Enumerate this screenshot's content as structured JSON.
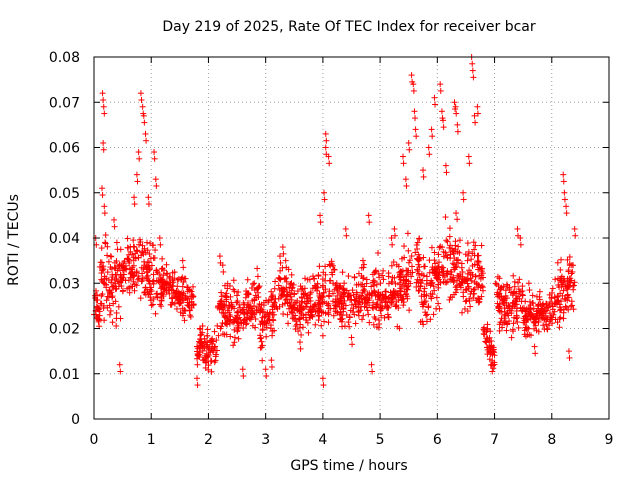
{
  "chart_data": {
    "type": "scatter",
    "title": "Day 219 of 2025, Rate Of TEC Index for receiver bcar",
    "xlabel": "GPS time / hours",
    "ylabel": "ROTI / TECUs",
    "xlim": [
      0,
      9
    ],
    "ylim": [
      0,
      0.08
    ],
    "x_ticks": [
      "0",
      "1",
      "2",
      "3",
      "4",
      "5",
      "6",
      "7",
      "8",
      "9"
    ],
    "y_ticks": [
      "0",
      "0.01",
      "0.02",
      "0.03",
      "0.04",
      "0.05",
      "0.06",
      "0.07",
      "0.08"
    ],
    "grid": true,
    "marker": "+",
    "marker_color": "#ff0000",
    "segments": [
      {
        "x": [
          0.0,
          0.1
        ],
        "y": [
          0.026,
          0.024
        ],
        "spread": [
          0.006,
          0.004
        ],
        "peaks": [
          [
            0.03,
            0.04
          ],
          [
            0.08,
            0.022
          ]
        ]
      },
      {
        "x": [
          0.1,
          0.25
        ],
        "y": [
          0.03,
          0.035
        ],
        "spread": [
          0.008,
          0.01
        ],
        "peaks": [
          [
            0.15,
            0.072
          ],
          [
            0.17,
            0.069
          ],
          [
            0.16,
            0.061
          ],
          [
            0.14,
            0.051
          ],
          [
            0.18,
            0.047
          ]
        ]
      },
      {
        "x": [
          0.25,
          0.5
        ],
        "y": [
          0.028,
          0.032
        ],
        "spread": [
          0.007,
          0.008
        ],
        "peaks": [
          [
            0.35,
            0.044
          ],
          [
            0.4,
            0.039
          ],
          [
            0.45,
            0.012
          ]
        ]
      },
      {
        "x": [
          0.5,
          0.8
        ],
        "y": [
          0.032,
          0.034
        ],
        "spread": [
          0.006,
          0.008
        ],
        "peaks": [
          [
            0.75,
            0.054
          ],
          [
            0.78,
            0.059
          ],
          [
            0.7,
            0.049
          ]
        ]
      },
      {
        "x": [
          0.8,
          1.1
        ],
        "y": [
          0.035,
          0.03
        ],
        "spread": [
          0.008,
          0.008
        ],
        "peaks": [
          [
            0.82,
            0.072
          ],
          [
            0.85,
            0.069
          ],
          [
            0.87,
            0.067
          ],
          [
            0.9,
            0.063
          ],
          [
            0.95,
            0.049
          ],
          [
            1.05,
            0.059
          ],
          [
            1.08,
            0.053
          ]
        ]
      },
      {
        "x": [
          1.1,
          1.4
        ],
        "y": [
          0.03,
          0.028
        ],
        "spread": [
          0.006,
          0.005
        ],
        "peaks": [
          [
            1.15,
            0.04
          ]
        ]
      },
      {
        "x": [
          1.4,
          1.75
        ],
        "y": [
          0.028,
          0.025
        ],
        "spread": [
          0.005,
          0.005
        ],
        "peaks": [
          [
            1.55,
            0.035
          ]
        ]
      },
      {
        "x": [
          1.8,
          2.15
        ],
        "y": [
          0.016,
          0.015
        ],
        "spread": [
          0.004,
          0.004
        ],
        "peaks": [
          [
            1.8,
            0.009
          ],
          [
            1.85,
            0.02
          ]
        ]
      },
      {
        "x": [
          2.15,
          2.5
        ],
        "y": [
          0.024,
          0.024
        ],
        "spread": [
          0.006,
          0.006
        ],
        "peaks": [
          [
            2.2,
            0.036
          ],
          [
            2.25,
            0.034
          ]
        ]
      },
      {
        "x": [
          2.5,
          2.9
        ],
        "y": [
          0.022,
          0.026
        ],
        "spread": [
          0.006,
          0.006
        ],
        "peaks": [
          [
            2.6,
            0.011
          ],
          [
            2.8,
            0.03
          ]
        ]
      },
      {
        "x": [
          2.9,
          3.2
        ],
        "y": [
          0.02,
          0.025
        ],
        "spread": [
          0.006,
          0.006
        ],
        "peaks": [
          [
            3.0,
            0.011
          ],
          [
            3.1,
            0.013
          ]
        ]
      },
      {
        "x": [
          3.2,
          3.5
        ],
        "y": [
          0.03,
          0.026
        ],
        "spread": [
          0.006,
          0.006
        ],
        "peaks": [
          [
            3.25,
            0.036
          ],
          [
            3.3,
            0.038
          ],
          [
            3.35,
            0.035
          ]
        ]
      },
      {
        "x": [
          3.5,
          3.9
        ],
        "y": [
          0.024,
          0.026
        ],
        "spread": [
          0.006,
          0.007
        ],
        "peaks": [
          [
            3.6,
            0.017
          ],
          [
            3.85,
            0.031
          ]
        ]
      },
      {
        "x": [
          3.9,
          4.2
        ],
        "y": [
          0.025,
          0.03
        ],
        "spread": [
          0.008,
          0.008
        ],
        "peaks": [
          [
            4.05,
            0.063
          ],
          [
            4.05,
            0.06
          ],
          [
            4.1,
            0.058
          ],
          [
            4.0,
            0.009
          ],
          [
            3.95,
            0.045
          ],
          [
            4.02,
            0.05
          ]
        ]
      },
      {
        "x": [
          4.2,
          4.6
        ],
        "y": [
          0.026,
          0.027
        ],
        "spread": [
          0.006,
          0.007
        ],
        "peaks": [
          [
            4.4,
            0.042
          ],
          [
            4.5,
            0.018
          ]
        ]
      },
      {
        "x": [
          4.6,
          5.0
        ],
        "y": [
          0.027,
          0.028
        ],
        "spread": [
          0.007,
          0.007
        ],
        "peaks": [
          [
            4.8,
            0.045
          ],
          [
            4.7,
            0.035
          ],
          [
            4.85,
            0.012
          ]
        ]
      },
      {
        "x": [
          5.0,
          5.3
        ],
        "y": [
          0.026,
          0.028
        ],
        "spread": [
          0.006,
          0.007
        ],
        "peaks": [
          [
            5.2,
            0.04
          ],
          [
            5.25,
            0.042
          ]
        ]
      },
      {
        "x": [
          5.3,
          5.7
        ],
        "y": [
          0.028,
          0.035
        ],
        "spread": [
          0.008,
          0.009
        ],
        "peaks": [
          [
            5.55,
            0.076
          ],
          [
            5.58,
            0.074
          ],
          [
            5.6,
            0.068
          ],
          [
            5.62,
            0.064
          ],
          [
            5.5,
            0.061
          ],
          [
            5.45,
            0.053
          ],
          [
            5.4,
            0.058
          ]
        ]
      },
      {
        "x": [
          5.7,
          6.0
        ],
        "y": [
          0.025,
          0.033
        ],
        "spread": [
          0.008,
          0.008
        ],
        "peaks": [
          [
            5.9,
            0.064
          ],
          [
            5.85,
            0.06
          ],
          [
            5.75,
            0.055
          ],
          [
            5.95,
            0.071
          ]
        ]
      },
      {
        "x": [
          6.0,
          6.4
        ],
        "y": [
          0.032,
          0.035
        ],
        "spread": [
          0.008,
          0.009
        ],
        "peaks": [
          [
            6.05,
            0.074
          ],
          [
            6.08,
            0.068
          ],
          [
            6.1,
            0.066
          ],
          [
            6.3,
            0.07
          ],
          [
            6.32,
            0.069
          ],
          [
            6.35,
            0.065
          ],
          [
            6.15,
            0.056
          ]
        ]
      },
      {
        "x": [
          6.4,
          6.8
        ],
        "y": [
          0.03,
          0.032
        ],
        "spread": [
          0.008,
          0.008
        ],
        "peaks": [
          [
            6.6,
            0.08
          ],
          [
            6.62,
            0.077
          ],
          [
            6.65,
            0.067
          ],
          [
            6.7,
            0.069
          ],
          [
            6.55,
            0.058
          ],
          [
            6.45,
            0.05
          ]
        ]
      },
      {
        "x": [
          6.8,
          7.0
        ],
        "y": [
          0.02,
          0.014
        ],
        "spread": [
          0.005,
          0.003
        ],
        "peaks": [
          [
            6.95,
            0.012
          ]
        ]
      },
      {
        "x": [
          7.0,
          7.5
        ],
        "y": [
          0.026,
          0.025
        ],
        "spread": [
          0.006,
          0.006
        ],
        "peaks": [
          [
            7.4,
            0.042
          ],
          [
            7.45,
            0.04
          ]
        ]
      },
      {
        "x": [
          7.5,
          8.0
        ],
        "y": [
          0.022,
          0.024
        ],
        "spread": [
          0.005,
          0.005
        ],
        "peaks": [
          [
            7.6,
            0.03
          ],
          [
            7.7,
            0.016
          ]
        ]
      },
      {
        "x": [
          8.0,
          8.4
        ],
        "y": [
          0.026,
          0.03
        ],
        "spread": [
          0.006,
          0.008
        ],
        "peaks": [
          [
            8.2,
            0.054
          ],
          [
            8.22,
            0.05
          ],
          [
            8.25,
            0.047
          ],
          [
            8.3,
            0.015
          ],
          [
            8.35,
            0.034
          ],
          [
            8.4,
            0.042
          ]
        ]
      }
    ]
  }
}
